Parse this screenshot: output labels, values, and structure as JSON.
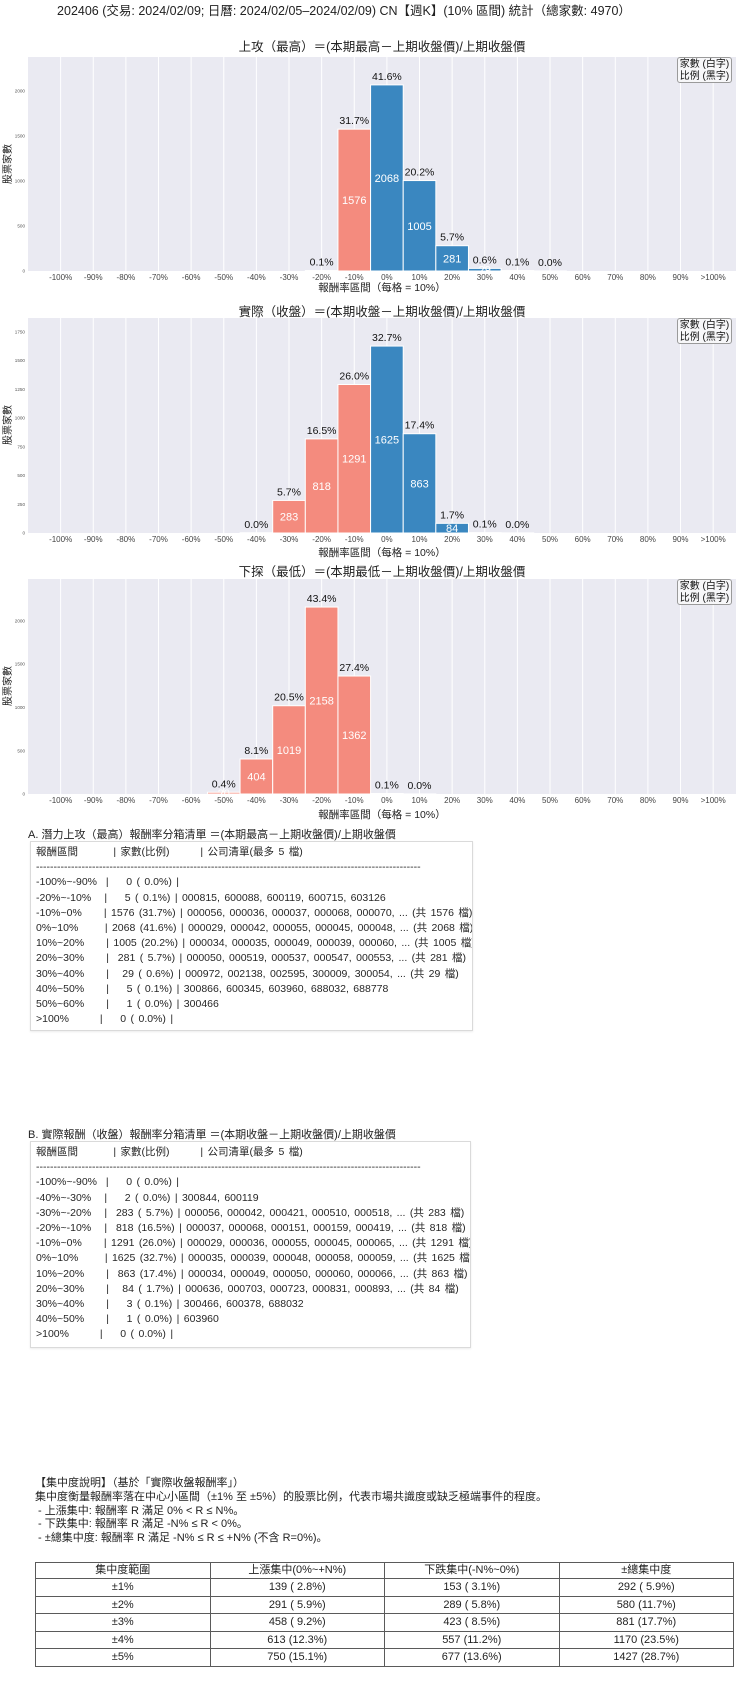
{
  "page": {
    "title": "202406 (交易: 2024/02/09; 日曆: 2024/02/05–2024/02/09) CN【週K】(10% 區間) 統計（總家數: 4970）"
  },
  "legend": {
    "count_note": "家數 (白字)",
    "ratio_note": "比例 (黑字)"
  },
  "colors": {
    "negative_bar": "#f48b7e",
    "positive_bar": "#3a87c0",
    "plot_bg": "#eaeaf2",
    "count_label": "#ffffff",
    "percent_label": "#111111"
  },
  "chart_data": [
    {
      "type": "bar",
      "title": "上攻（最高）＝(本期最高－上期收盤價)/上期收盤價",
      "xlabel": "報酬率區間（每格 = 10%）",
      "ylabel": "股票家數",
      "categories": [
        "-100%",
        "-90%",
        "-80%",
        "-70%",
        "-60%",
        "-50%",
        "-40%",
        "-30%",
        "-20%",
        "-10%",
        "0%",
        "10%",
        "20%",
        "30%",
        "40%",
        "50%",
        "60%",
        "70%",
        "80%",
        "90%",
        ">100%"
      ],
      "values": [
        0,
        0,
        0,
        0,
        0,
        0,
        0,
        0,
        5,
        1576,
        2068,
        1005,
        281,
        29,
        5,
        1,
        0,
        0,
        0,
        0,
        0
      ],
      "percent_labels": [
        "",
        "",
        "",
        "",
        "",
        "",
        "",
        "",
        "0.1%",
        "31.7%",
        "41.6%",
        "20.2%",
        "5.7%",
        "0.6%",
        "0.1%",
        "0.0%",
        "",
        "",
        "",
        "",
        ""
      ],
      "yticks": [
        0,
        500,
        1000,
        1500,
        2000
      ],
      "ylim": [
        0,
        2378
      ],
      "grid": "vertical",
      "legend_position": "upper right"
    },
    {
      "type": "bar",
      "title": "實際（收盤）＝(本期收盤－上期收盤價)/上期收盤價",
      "xlabel": "報酬率區間（每格 = 10%）",
      "ylabel": "股票家數",
      "categories": [
        "-100%",
        "-90%",
        "-80%",
        "-70%",
        "-60%",
        "-50%",
        "-40%",
        "-30%",
        "-20%",
        "-10%",
        "0%",
        "10%",
        "20%",
        "30%",
        "40%",
        "50%",
        "60%",
        "70%",
        "80%",
        "90%",
        ">100%"
      ],
      "values": [
        0,
        0,
        0,
        0,
        0,
        0,
        2,
        283,
        818,
        1291,
        1625,
        863,
        84,
        3,
        1,
        0,
        0,
        0,
        0,
        0,
        0
      ],
      "percent_labels": [
        "",
        "",
        "",
        "",
        "",
        "",
        "0.0%",
        "5.7%",
        "16.5%",
        "26.0%",
        "32.7%",
        "17.4%",
        "1.7%",
        "0.1%",
        "0.0%",
        "",
        "",
        "",
        "",
        "",
        ""
      ],
      "yticks": [
        0,
        250,
        500,
        750,
        1000,
        1250,
        1500,
        1750
      ],
      "ylim": [
        0,
        1869
      ],
      "grid": "vertical",
      "legend_position": "upper right"
    },
    {
      "type": "bar",
      "title": "下探（最低）＝(本期最低－上期收盤價)/上期收盤價",
      "xlabel": "報酬率區間（每格 = 10%）",
      "ylabel": "股票家數",
      "categories": [
        "-100%",
        "-90%",
        "-80%",
        "-70%",
        "-60%",
        "-50%",
        "-40%",
        "-30%",
        "-20%",
        "-10%",
        "0%",
        "10%",
        "20%",
        "30%",
        "40%",
        "50%",
        "60%",
        "70%",
        "80%",
        "90%",
        ">100%"
      ],
      "values": [
        0,
        0,
        0,
        0,
        0,
        20,
        404,
        1019,
        2158,
        1362,
        6,
        1,
        0,
        0,
        0,
        0,
        0,
        0,
        0,
        0,
        0
      ],
      "percent_labels": [
        "",
        "",
        "",
        "",
        "",
        "0.4%",
        "8.1%",
        "20.5%",
        "43.4%",
        "27.4%",
        "0.1%",
        "0.0%",
        "",
        "",
        "",
        "",
        "",
        "",
        "",
        "",
        ""
      ],
      "yticks": [
        0,
        500,
        1000,
        1500,
        2000
      ],
      "ylim": [
        0,
        2482
      ],
      "grid": "vertical",
      "legend_position": "upper right"
    }
  ],
  "section_a": {
    "heading": "A. 潛力上攻（最高）報酬率分箱清單 ＝(本期最高－上期收盤價)/上期收盤價",
    "columns": [
      "報酬區間",
      "家數(比例)",
      "公司清單(最多 5 檔)"
    ],
    "separator": "--------------------------------------------------------------------------------------------------------------",
    "rows": [
      [
        "-100%~-90%",
        "0",
        "0.0%",
        ""
      ],
      [
        "-20%~-10%",
        "5",
        "0.1%",
        "000815, 600088, 600119, 600715, 603126"
      ],
      [
        "-10%~0%",
        "1576",
        "31.7%",
        "000056, 000036, 000037, 000068, 000070, ... (共 1576 檔)"
      ],
      [
        "0%~10%",
        "2068",
        "41.6%",
        "000029, 000042, 000055, 000045, 000048, ... (共 2068 檔)"
      ],
      [
        "10%~20%",
        "1005",
        "20.2%",
        "000034, 000035, 000049, 000039, 000060, ... (共 1005 檔)"
      ],
      [
        "20%~30%",
        "281",
        "5.7%",
        "000050, 000519, 000537, 000547, 000553, ... (共 281 檔)"
      ],
      [
        "30%~40%",
        "29",
        "0.6%",
        "000972, 002138, 002595, 300009, 300054, ... (共 29 檔)"
      ],
      [
        "40%~50%",
        "5",
        "0.1%",
        "300866, 600345, 603960, 688032, 688778"
      ],
      [
        "50%~60%",
        "1",
        "0.0%",
        "300466"
      ],
      [
        ">100%",
        "0",
        "0.0%",
        ""
      ]
    ]
  },
  "section_b": {
    "heading": "B. 實際報酬（收盤）報酬率分箱清單 ＝(本期收盤－上期收盤價)/上期收盤價",
    "columns": [
      "報酬區間",
      "家數(比例)",
      "公司清單(最多 5 檔)"
    ],
    "separator": "--------------------------------------------------------------------------------------------------------------",
    "rows": [
      [
        "-100%~-90%",
        "0",
        "0.0%",
        ""
      ],
      [
        "-40%~-30%",
        "2",
        "0.0%",
        "300844, 600119"
      ],
      [
        "-30%~-20%",
        "283",
        "5.7%",
        "000056, 000042, 000421, 000510, 000518, ... (共 283 檔)"
      ],
      [
        "-20%~-10%",
        "818",
        "16.5%",
        "000037, 000068, 000151, 000159, 000419, ... (共 818 檔)"
      ],
      [
        "-10%~0%",
        "1291",
        "26.0%",
        "000029, 000036, 000055, 000045, 000065, ... (共 1291 檔)"
      ],
      [
        "0%~10%",
        "1625",
        "32.7%",
        "000035, 000039, 000048, 000058, 000059, ... (共 1625 檔)"
      ],
      [
        "10%~20%",
        "863",
        "17.4%",
        "000034, 000049, 000050, 000060, 000066, ... (共 863 檔)"
      ],
      [
        "20%~30%",
        "84",
        "1.7%",
        "000636, 000703, 000723, 000831, 000893, ... (共 84 檔)"
      ],
      [
        "30%~40%",
        "3",
        "0.1%",
        "300466, 600378, 688032"
      ],
      [
        "40%~50%",
        "1",
        "0.0%",
        "603960"
      ],
      [
        ">100%",
        "0",
        "0.0%",
        ""
      ]
    ]
  },
  "concentration": {
    "title": "【集中度說明】（基於「實際收盤報酬率」）",
    "description": "集中度衡量報酬率落在中心小區間（±1% 至 ±5%）的股票比例，代表市場共識度或缺乏極端事件的程度。",
    "rules": [
      " - 上漲集中: 報酬率 R 滿足 0% < R ≤ N%。",
      " - 下跌集中: 報酬率 R 滿足 -N% ≤ R < 0%。",
      " - ±總集中度: 報酬率 R 滿足 -N% ≤ R ≤ +N% (不含 R=0%)。"
    ],
    "table": {
      "columns": [
        "集中度範圍",
        "上漲集中(0%~+N%)",
        "下跌集中(-N%~0%)",
        "±總集中度"
      ],
      "rows": [
        [
          "±1%",
          "139 ( 2.8%)",
          "153 ( 3.1%)",
          "292 ( 5.9%)"
        ],
        [
          "±2%",
          "291 ( 5.9%)",
          "289 ( 5.8%)",
          "580 (11.7%)"
        ],
        [
          "±3%",
          "458 ( 9.2%)",
          "423 ( 8.5%)",
          "881 (17.7%)"
        ],
        [
          "±4%",
          "613 (12.3%)",
          "557 (11.2%)",
          "1170 (23.5%)"
        ],
        [
          "±5%",
          "750 (15.1%)",
          "677 (13.6%)",
          "1427 (28.7%)"
        ]
      ]
    }
  }
}
